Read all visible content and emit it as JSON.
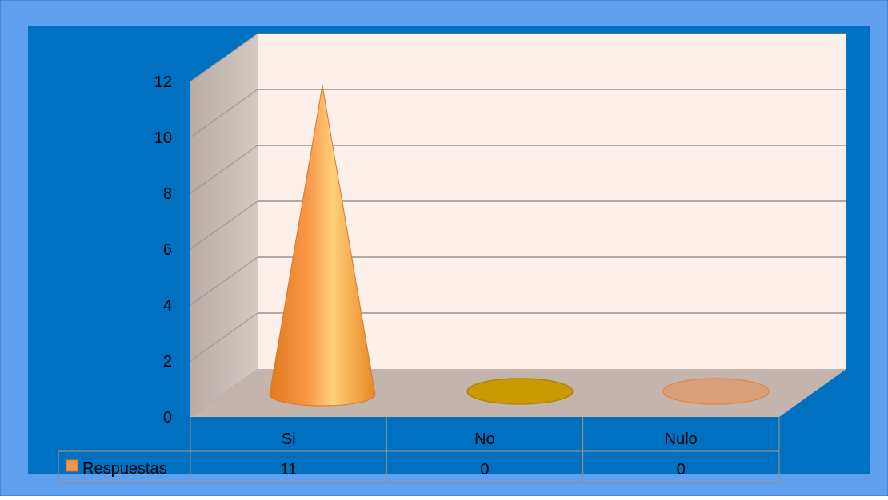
{
  "chart_data": {
    "type": "bar",
    "subtype": "3d-cone",
    "title": "",
    "xlabel": "",
    "ylabel": "",
    "categories": [
      "Si",
      "No",
      "Nulo"
    ],
    "series": [
      {
        "name": "Respuestas",
        "values": [
          11,
          0,
          0
        ]
      }
    ],
    "ylim": [
      0,
      12
    ],
    "yticks": [
      0,
      2,
      4,
      6,
      8,
      10,
      12
    ],
    "yticklabels": [
      "0",
      "2",
      "4",
      "6",
      "8",
      "10",
      "12"
    ],
    "grid": true,
    "data_table": {
      "rows": [
        {
          "label": "Respuestas",
          "cells": [
            "11",
            "0",
            "0"
          ]
        }
      ]
    },
    "colors": {
      "outer_background": "#5e9ff0",
      "plot_background": "#0070c0",
      "back_wall": "#fdf0ea",
      "side_wall": "#c7bab4",
      "floor": "#c4b4ae",
      "gridline": "#7f7f7f",
      "cone": "#f79646",
      "no_disc": "#c99a00",
      "nulo_disc": "#d9a07a"
    }
  }
}
